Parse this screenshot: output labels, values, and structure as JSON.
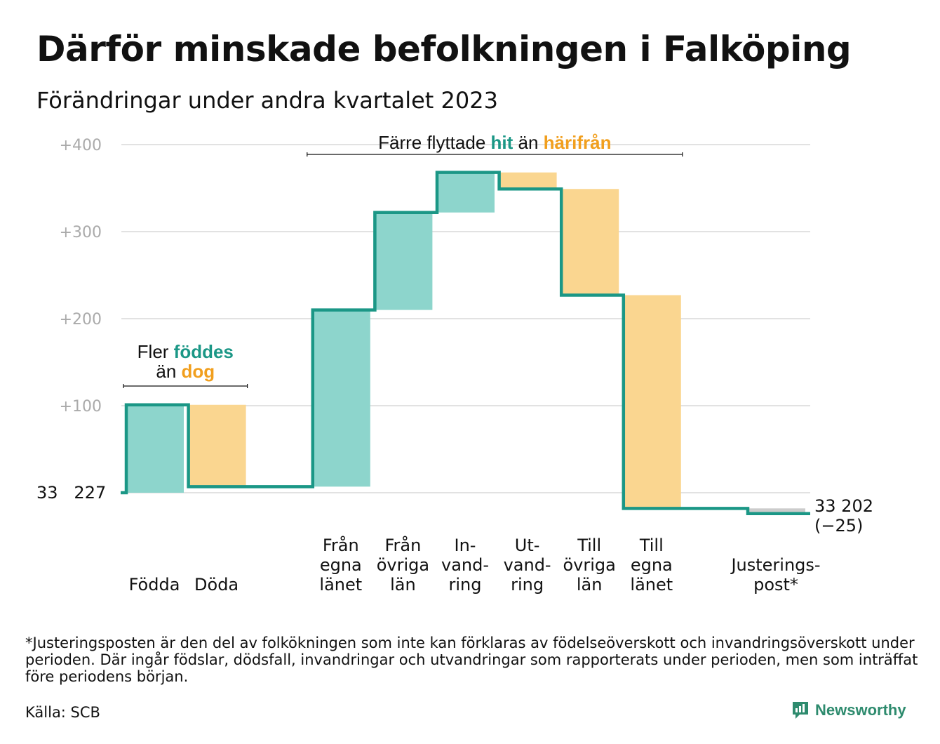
{
  "title": "Därför minskade befolkningen i Falköping",
  "subtitle": "Förändringar under andra kvartalet 2023",
  "footnote": "*Justeringsposten är den del av folkökningen som inte kan förklaras av födelseöverskott och invandringsöverskott under perioden. Där ingår födslar, dödsfall, invandringar och utvandringar som rapporterats under perioden, men som inträffat före periodens början.",
  "source": "Källa: SCB",
  "brand": "Newsworthy",
  "colors": {
    "inflow": "#8dd5cc",
    "outflow": "#fad690",
    "line": "#1b9786",
    "adjust": "#cccccc",
    "accent_teal": "#1b9786",
    "accent_orange": "#f19f1e",
    "grid": "#e2e2e2",
    "tick": "#aaaaaa"
  },
  "chart_data": {
    "type": "bar",
    "subtype": "waterfall",
    "start_label": "33   227",
    "end_label_line1": "33 202",
    "end_label_line2": "(−25)",
    "yticks": [
      100,
      200,
      300,
      400
    ],
    "ytick_labels": [
      "+100",
      "+200",
      "+300",
      "+400"
    ],
    "ylim": [
      -60,
      410
    ],
    "grid": true,
    "steps": [
      {
        "label_lines": [
          "Födda"
        ],
        "value": 101,
        "kind": "in"
      },
      {
        "label_lines": [
          "Döda"
        ],
        "value": -94,
        "kind": "out"
      },
      {
        "label_lines": [],
        "value": 0,
        "kind": "gap"
      },
      {
        "label_lines": [
          "Från",
          "egna",
          "länet"
        ],
        "value": 203,
        "kind": "in"
      },
      {
        "label_lines": [
          "Från",
          "övriga",
          "län"
        ],
        "value": 112,
        "kind": "in"
      },
      {
        "label_lines": [
          "In-",
          "vand-",
          "ring"
        ],
        "value": 46,
        "kind": "in"
      },
      {
        "label_lines": [
          "Ut-",
          "vand-",
          "ring"
        ],
        "value": -19,
        "kind": "out"
      },
      {
        "label_lines": [
          "Till",
          "övriga",
          "län"
        ],
        "value": -122,
        "kind": "out"
      },
      {
        "label_lines": [
          "Till",
          "egna",
          "länet"
        ],
        "value": -245,
        "kind": "out"
      },
      {
        "label_lines": [],
        "value": 0,
        "kind": "gap"
      },
      {
        "label_lines": [
          "Justerings-",
          "post*"
        ],
        "value": -6,
        "kind": "adjust"
      }
    ],
    "annotations": [
      {
        "parts": [
          {
            "text": "Fler ",
            "style": "plain"
          },
          {
            "text": "föddes",
            "style": "teal"
          }
        ],
        "parts2": [
          {
            "text": "än ",
            "style": "plain"
          },
          {
            "text": "dog",
            "style": "orange"
          }
        ],
        "span": [
          0,
          1
        ]
      },
      {
        "parts": [
          {
            "text": "Färre flyttade ",
            "style": "plain"
          },
          {
            "text": "hit",
            "style": "teal"
          },
          {
            "text": " än ",
            "style": "plain"
          },
          {
            "text": "härifrån",
            "style": "orange"
          }
        ],
        "span": [
          3,
          8
        ]
      }
    ]
  }
}
